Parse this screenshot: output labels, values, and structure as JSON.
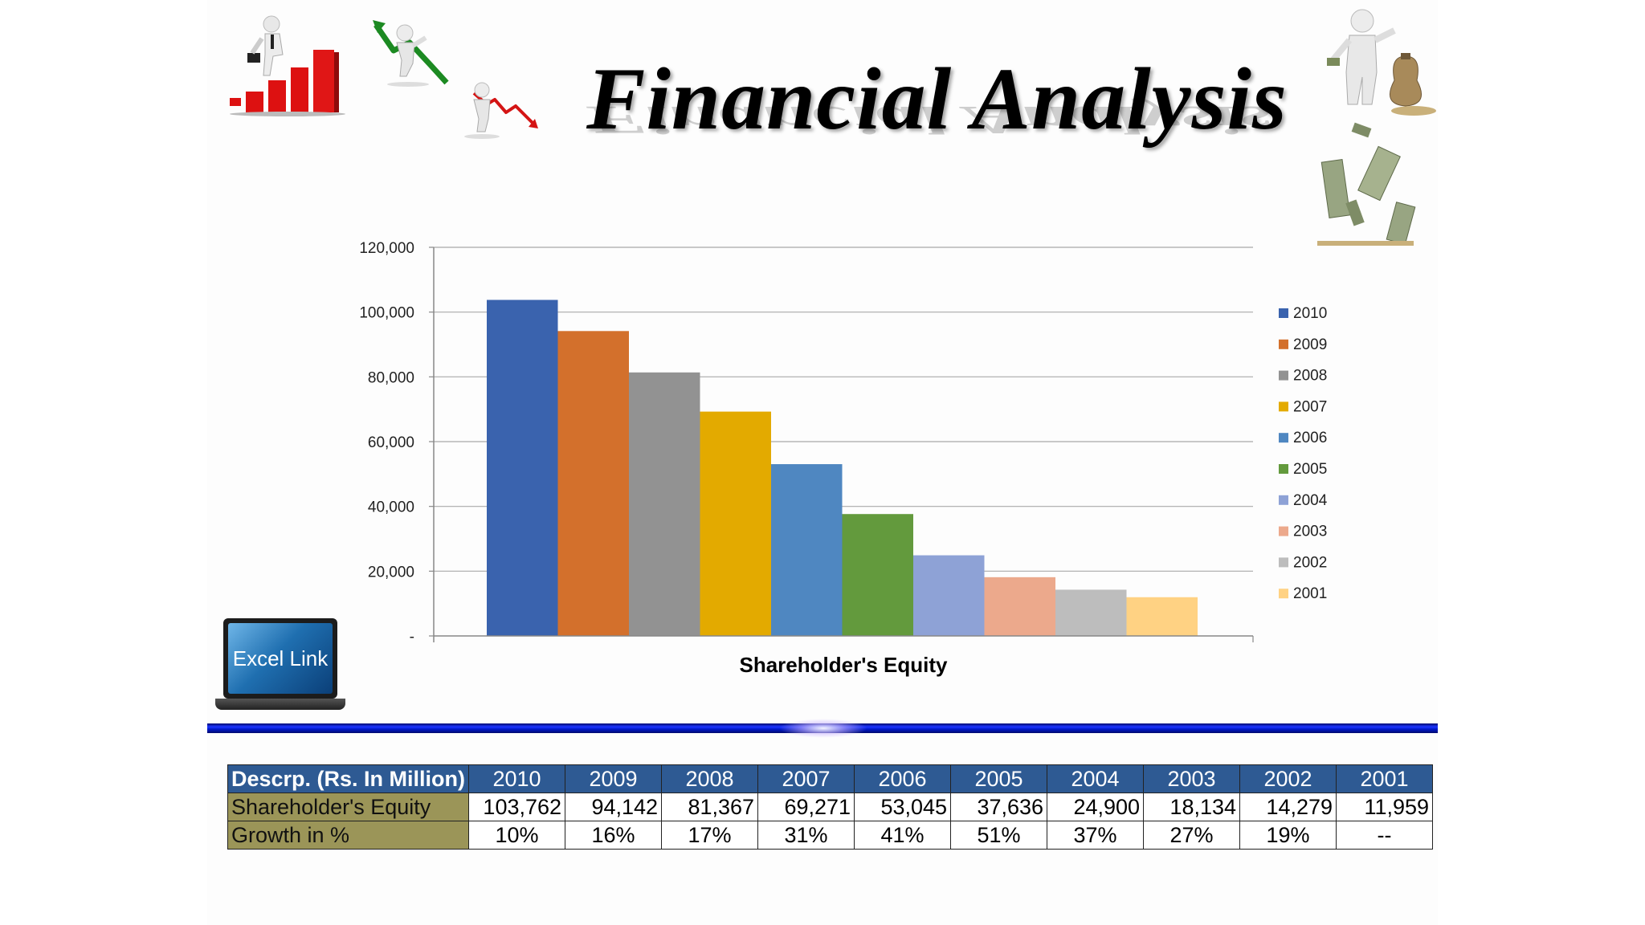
{
  "slide": {
    "title": "Financial Analysis",
    "excel_link_label": "Excel Link"
  },
  "chart_data": {
    "type": "bar",
    "title": "",
    "xlabel": "Shareholder's Equity",
    "ylabel": "",
    "ylim": [
      0,
      120000
    ],
    "yticks": [
      0,
      20000,
      40000,
      60000,
      80000,
      100000,
      120000
    ],
    "ytick_labels": [
      "-",
      "20,000",
      "40,000",
      "60,000",
      "80,000",
      "100,000",
      "120,000"
    ],
    "grid": true,
    "legend_position": "right",
    "series": [
      {
        "name": "2010",
        "value": 103762,
        "color": "#3a63ae"
      },
      {
        "name": "2009",
        "value": 94142,
        "color": "#d3702c"
      },
      {
        "name": "2008",
        "value": 81367,
        "color": "#929292"
      },
      {
        "name": "2007",
        "value": 69271,
        "color": "#e3aa00"
      },
      {
        "name": "2006",
        "value": 53045,
        "color": "#4f87c1"
      },
      {
        "name": "2005",
        "value": 37636,
        "color": "#639a3d"
      },
      {
        "name": "2004",
        "value": 24900,
        "color": "#8ea2d6"
      },
      {
        "name": "2003",
        "value": 18134,
        "color": "#eca98c"
      },
      {
        "name": "2002",
        "value": 14279,
        "color": "#bdbdbd"
      },
      {
        "name": "2001",
        "value": 11959,
        "color": "#ffd283"
      }
    ]
  },
  "table": {
    "header": [
      "Descrp. (Rs. In Million)",
      "2010",
      "2009",
      "2008",
      "2007",
      "2006",
      "2005",
      "2004",
      "2003",
      "2002",
      "2001"
    ],
    "rows": [
      {
        "label": "Shareholder's Equity",
        "cells": [
          "103,762",
          "94,142",
          "81,367",
          "69,271",
          "53,045",
          "37,636",
          "24,900",
          "18,134",
          "14,279",
          "11,959"
        ]
      },
      {
        "label": "Growth in %",
        "cells": [
          "10%",
          "16%",
          "17%",
          "31%",
          "41%",
          "51%",
          "37%",
          "27%",
          "19%",
          "--"
        ]
      }
    ]
  },
  "clipart": [
    {
      "icon": "businessman-climbing-bar-chart-icon"
    },
    {
      "icon": "figure-green-arrow-falling-icon"
    },
    {
      "icon": "figure-red-downtrend-line-icon"
    },
    {
      "icon": "figure-money-bag-icon"
    },
    {
      "icon": "falling-banknotes-icon"
    },
    {
      "icon": "laptop-icon"
    }
  ]
}
